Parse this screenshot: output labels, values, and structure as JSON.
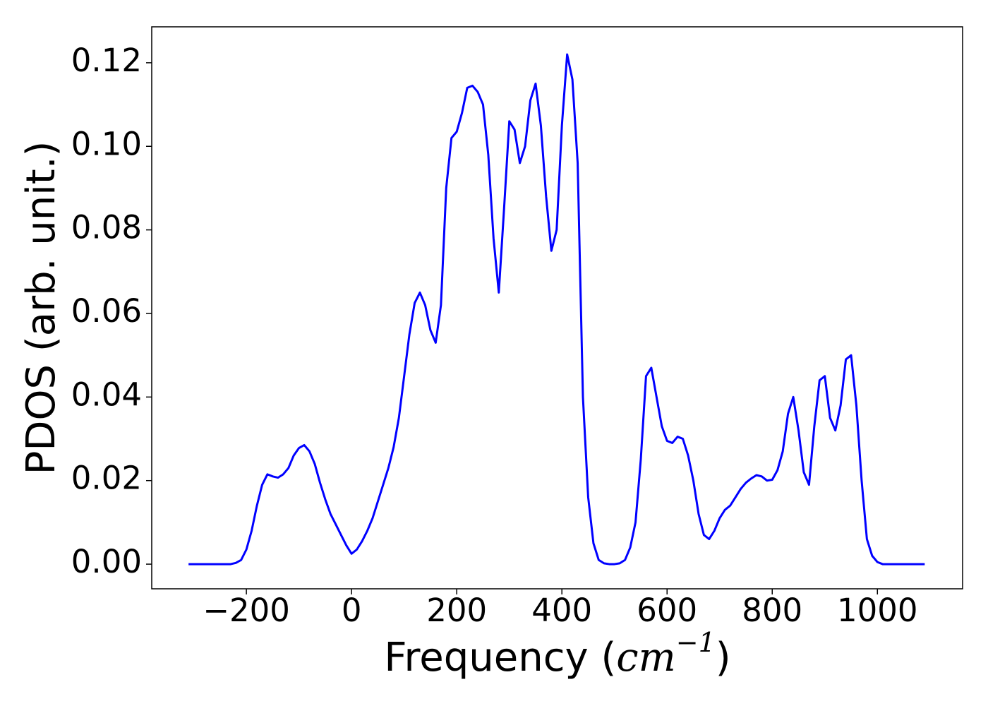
{
  "chart_data": {
    "type": "line",
    "xlabel": [
      "Frequency (",
      "cm",
      "−1",
      ")"
    ],
    "ylabel": "PDOS (arb. unit.)",
    "x": [
      -310,
      -300,
      -290,
      -280,
      -270,
      -260,
      -250,
      -240,
      -230,
      -220,
      -210,
      -200,
      -190,
      -180,
      -170,
      -160,
      -150,
      -140,
      -130,
      -120,
      -110,
      -100,
      -90,
      -80,
      -70,
      -60,
      -50,
      -40,
      -30,
      -20,
      -10,
      0,
      10,
      20,
      30,
      40,
      50,
      60,
      70,
      80,
      90,
      100,
      110,
      120,
      130,
      140,
      150,
      160,
      170,
      180,
      190,
      200,
      210,
      220,
      230,
      240,
      250,
      260,
      270,
      280,
      290,
      300,
      310,
      320,
      330,
      340,
      350,
      360,
      370,
      380,
      390,
      400,
      410,
      420,
      430,
      440,
      450,
      460,
      470,
      480,
      490,
      500,
      510,
      520,
      530,
      540,
      550,
      560,
      570,
      580,
      590,
      600,
      610,
      620,
      630,
      640,
      650,
      660,
      670,
      680,
      690,
      700,
      710,
      720,
      730,
      740,
      750,
      760,
      770,
      780,
      790,
      800,
      810,
      820,
      830,
      840,
      850,
      860,
      870,
      880,
      890,
      900,
      910,
      920,
      930,
      940,
      950,
      960,
      970,
      980,
      990,
      1000,
      1010,
      1020,
      1030,
      1040,
      1050,
      1060,
      1070,
      1080,
      1090
    ],
    "series": [
      {
        "name": "PDOS",
        "color": "#0000ff",
        "values": [
          0,
          0,
          0,
          0,
          0,
          0,
          0,
          0,
          0,
          0.0003,
          0.001,
          0.0035,
          0.008,
          0.014,
          0.019,
          0.0215,
          0.021,
          0.0207,
          0.0215,
          0.023,
          0.026,
          0.0278,
          0.0285,
          0.027,
          0.024,
          0.0195,
          0.0155,
          0.012,
          0.0095,
          0.007,
          0.0045,
          0.0025,
          0.0035,
          0.0055,
          0.008,
          0.011,
          0.015,
          0.019,
          0.023,
          0.028,
          0.035,
          0.045,
          0.055,
          0.0625,
          0.065,
          0.062,
          0.056,
          0.053,
          0.062,
          0.09,
          0.102,
          0.1035,
          0.108,
          0.114,
          0.1145,
          0.113,
          0.11,
          0.098,
          0.078,
          0.065,
          0.085,
          0.106,
          0.104,
          0.096,
          0.1,
          0.111,
          0.115,
          0.105,
          0.088,
          0.075,
          0.08,
          0.105,
          0.122,
          0.116,
          0.096,
          0.04,
          0.016,
          0.005,
          0.001,
          0.0002,
          0,
          0,
          0.0002,
          0.001,
          0.004,
          0.01,
          0.025,
          0.045,
          0.047,
          0.04,
          0.033,
          0.0295,
          0.029,
          0.0305,
          0.03,
          0.026,
          0.02,
          0.012,
          0.007,
          0.006,
          0.008,
          0.011,
          0.013,
          0.014,
          0.016,
          0.018,
          0.0195,
          0.0205,
          0.0213,
          0.021,
          0.02,
          0.0202,
          0.0225,
          0.027,
          0.036,
          0.04,
          0.032,
          0.022,
          0.019,
          0.033,
          0.044,
          0.045,
          0.035,
          0.032,
          0.038,
          0.049,
          0.05,
          0.038,
          0.02,
          0.006,
          0.002,
          0.0005,
          0,
          0,
          0,
          0,
          0,
          0,
          0,
          0,
          0
        ]
      }
    ],
    "xlim": [
      -380,
      1162
    ],
    "ylim": [
      -0.0059,
      0.1286
    ],
    "xticks": [
      {
        "value": -200,
        "label": "−200"
      },
      0,
      200,
      400,
      600,
      800,
      1000
    ],
    "yticks": [
      {
        "value": 0,
        "label": "0.00"
      },
      0.02,
      0.04,
      0.06,
      0.08,
      {
        "value": 0.1,
        "label": "0.10"
      },
      0.12
    ],
    "grid": false
  }
}
